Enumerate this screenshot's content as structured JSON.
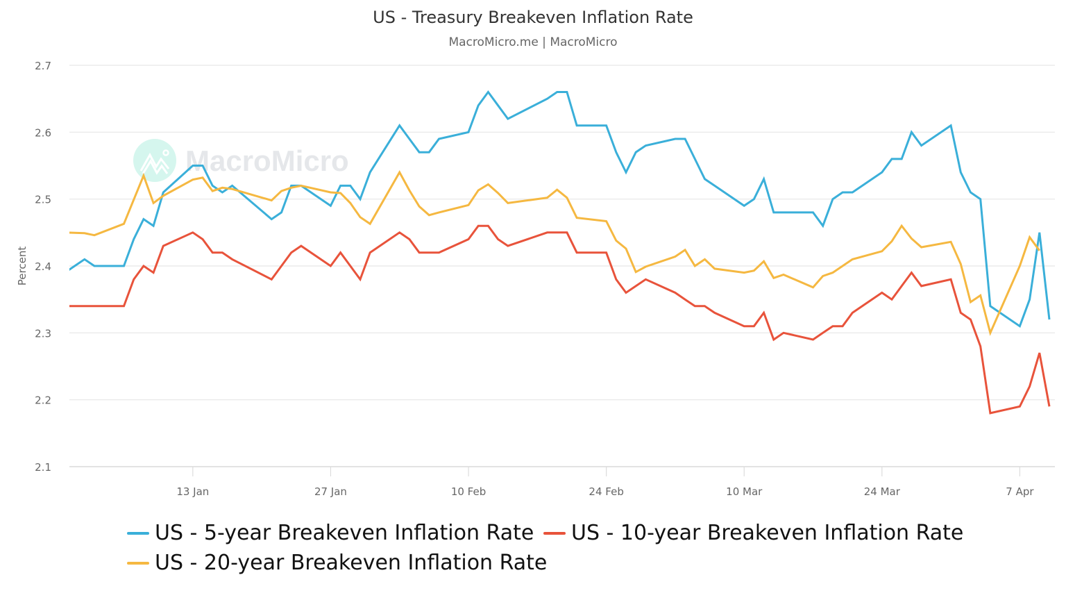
{
  "title": "US - Treasury Breakeven Inflation Rate",
  "subtitle": "MacroMicro.me | MacroMicro",
  "watermark": "MacroMicro",
  "chart_data": {
    "type": "line",
    "title": "US - Treasury Breakeven Inflation Rate",
    "xlabel": "",
    "ylabel": "Percent",
    "ylim": [
      2.1,
      2.7
    ],
    "xlim": [
      "2024-12-31",
      "2025-04-10"
    ],
    "yticks": [
      "2.1",
      "2.2",
      "2.3",
      "2.4",
      "2.5",
      "2.6",
      "2.7"
    ],
    "xticks": [
      {
        "date": "2025-01-13",
        "label": "13 Jan"
      },
      {
        "date": "2025-01-27",
        "label": "27 Jan"
      },
      {
        "date": "2025-02-10",
        "label": "10 Feb"
      },
      {
        "date": "2025-02-24",
        "label": "24 Feb"
      },
      {
        "date": "2025-03-10",
        "label": "10 Mar"
      },
      {
        "date": "2025-03-24",
        "label": "24 Mar"
      },
      {
        "date": "2025-04-07",
        "label": "7 Apr"
      }
    ],
    "grid": true,
    "legend_position": "bottom",
    "series": [
      {
        "name": "US - 5-year Breakeven Inflation Rate",
        "color": "#3aafd9",
        "points": [
          [
            "2024-12-31",
            2.39
          ],
          [
            "2025-01-02",
            2.41
          ],
          [
            "2025-01-03",
            2.4
          ],
          [
            "2025-01-06",
            2.4
          ],
          [
            "2025-01-07",
            2.44
          ],
          [
            "2025-01-08",
            2.47
          ],
          [
            "2025-01-09",
            2.46
          ],
          [
            "2025-01-10",
            2.51
          ],
          [
            "2025-01-13",
            2.55
          ],
          [
            "2025-01-14",
            2.55
          ],
          [
            "2025-01-15",
            2.52
          ],
          [
            "2025-01-16",
            2.51
          ],
          [
            "2025-01-17",
            2.52
          ],
          [
            "2025-01-21",
            2.47
          ],
          [
            "2025-01-22",
            2.48
          ],
          [
            "2025-01-23",
            2.52
          ],
          [
            "2025-01-24",
            2.52
          ],
          [
            "2025-01-27",
            2.49
          ],
          [
            "2025-01-28",
            2.52
          ],
          [
            "2025-01-29",
            2.52
          ],
          [
            "2025-01-30",
            2.5
          ],
          [
            "2025-01-31",
            2.54
          ],
          [
            "2025-02-03",
            2.61
          ],
          [
            "2025-02-04",
            2.59
          ],
          [
            "2025-02-05",
            2.57
          ],
          [
            "2025-02-06",
            2.57
          ],
          [
            "2025-02-07",
            2.59
          ],
          [
            "2025-02-10",
            2.6
          ],
          [
            "2025-02-11",
            2.64
          ],
          [
            "2025-02-12",
            2.66
          ],
          [
            "2025-02-13",
            2.64
          ],
          [
            "2025-02-14",
            2.62
          ],
          [
            "2025-02-18",
            2.65
          ],
          [
            "2025-02-19",
            2.66
          ],
          [
            "2025-02-20",
            2.66
          ],
          [
            "2025-02-21",
            2.61
          ],
          [
            "2025-02-24",
            2.61
          ],
          [
            "2025-02-25",
            2.57
          ],
          [
            "2025-02-26",
            2.54
          ],
          [
            "2025-02-27",
            2.57
          ],
          [
            "2025-02-28",
            2.58
          ],
          [
            "2025-03-03",
            2.59
          ],
          [
            "2025-03-04",
            2.59
          ],
          [
            "2025-03-05",
            2.56
          ],
          [
            "2025-03-06",
            2.53
          ],
          [
            "2025-03-07",
            2.52
          ],
          [
            "2025-03-10",
            2.49
          ],
          [
            "2025-03-11",
            2.5
          ],
          [
            "2025-03-12",
            2.53
          ],
          [
            "2025-03-13",
            2.48
          ],
          [
            "2025-03-14",
            2.48
          ],
          [
            "2025-03-17",
            2.48
          ],
          [
            "2025-03-18",
            2.46
          ],
          [
            "2025-03-19",
            2.5
          ],
          [
            "2025-03-20",
            2.51
          ],
          [
            "2025-03-21",
            2.51
          ],
          [
            "2025-03-24",
            2.54
          ],
          [
            "2025-03-25",
            2.56
          ],
          [
            "2025-03-26",
            2.56
          ],
          [
            "2025-03-27",
            2.6
          ],
          [
            "2025-03-28",
            2.58
          ],
          [
            "2025-03-31",
            2.61
          ],
          [
            "2025-04-01",
            2.54
          ],
          [
            "2025-04-02",
            2.51
          ],
          [
            "2025-04-03",
            2.5
          ],
          [
            "2025-04-04",
            2.34
          ],
          [
            "2025-04-07",
            2.31
          ],
          [
            "2025-04-08",
            2.35
          ],
          [
            "2025-04-09",
            2.45
          ],
          [
            "2025-04-10",
            2.32
          ]
        ]
      },
      {
        "name": "US - 10-year Breakeven Inflation Rate",
        "color": "#e8533b",
        "points": [
          [
            "2024-12-31",
            2.34
          ],
          [
            "2025-01-02",
            2.34
          ],
          [
            "2025-01-03",
            2.34
          ],
          [
            "2025-01-06",
            2.34
          ],
          [
            "2025-01-07",
            2.38
          ],
          [
            "2025-01-08",
            2.4
          ],
          [
            "2025-01-09",
            2.39
          ],
          [
            "2025-01-10",
            2.43
          ],
          [
            "2025-01-13",
            2.45
          ],
          [
            "2025-01-14",
            2.44
          ],
          [
            "2025-01-15",
            2.42
          ],
          [
            "2025-01-16",
            2.42
          ],
          [
            "2025-01-17",
            2.41
          ],
          [
            "2025-01-21",
            2.38
          ],
          [
            "2025-01-22",
            2.4
          ],
          [
            "2025-01-23",
            2.42
          ],
          [
            "2025-01-24",
            2.43
          ],
          [
            "2025-01-27",
            2.4
          ],
          [
            "2025-01-28",
            2.42
          ],
          [
            "2025-01-29",
            2.4
          ],
          [
            "2025-01-30",
            2.38
          ],
          [
            "2025-01-31",
            2.42
          ],
          [
            "2025-02-03",
            2.45
          ],
          [
            "2025-02-04",
            2.44
          ],
          [
            "2025-02-05",
            2.42
          ],
          [
            "2025-02-06",
            2.42
          ],
          [
            "2025-02-07",
            2.42
          ],
          [
            "2025-02-10",
            2.44
          ],
          [
            "2025-02-11",
            2.46
          ],
          [
            "2025-02-12",
            2.46
          ],
          [
            "2025-02-13",
            2.44
          ],
          [
            "2025-02-14",
            2.43
          ],
          [
            "2025-02-18",
            2.45
          ],
          [
            "2025-02-19",
            2.45
          ],
          [
            "2025-02-20",
            2.45
          ],
          [
            "2025-02-21",
            2.42
          ],
          [
            "2025-02-24",
            2.42
          ],
          [
            "2025-02-25",
            2.38
          ],
          [
            "2025-02-26",
            2.36
          ],
          [
            "2025-02-27",
            2.37
          ],
          [
            "2025-02-28",
            2.38
          ],
          [
            "2025-03-03",
            2.36
          ],
          [
            "2025-03-04",
            2.35
          ],
          [
            "2025-03-05",
            2.34
          ],
          [
            "2025-03-06",
            2.34
          ],
          [
            "2025-03-07",
            2.33
          ],
          [
            "2025-03-10",
            2.31
          ],
          [
            "2025-03-11",
            2.31
          ],
          [
            "2025-03-12",
            2.33
          ],
          [
            "2025-03-13",
            2.29
          ],
          [
            "2025-03-14",
            2.3
          ],
          [
            "2025-03-17",
            2.29
          ],
          [
            "2025-03-18",
            2.3
          ],
          [
            "2025-03-19",
            2.31
          ],
          [
            "2025-03-20",
            2.31
          ],
          [
            "2025-03-21",
            2.33
          ],
          [
            "2025-03-24",
            2.36
          ],
          [
            "2025-03-25",
            2.35
          ],
          [
            "2025-03-26",
            2.37
          ],
          [
            "2025-03-27",
            2.39
          ],
          [
            "2025-03-28",
            2.37
          ],
          [
            "2025-03-31",
            2.38
          ],
          [
            "2025-04-01",
            2.33
          ],
          [
            "2025-04-02",
            2.32
          ],
          [
            "2025-04-03",
            2.28
          ],
          [
            "2025-04-04",
            2.18
          ],
          [
            "2025-04-07",
            2.19
          ],
          [
            "2025-04-08",
            2.22
          ],
          [
            "2025-04-09",
            2.27
          ],
          [
            "2025-04-10",
            2.19
          ]
        ]
      },
      {
        "name": "US - 20-year Breakeven Inflation Rate",
        "color": "#f5b841",
        "points": [
          [
            "2024-12-31",
            2.45
          ],
          [
            "2025-01-02",
            2.449
          ],
          [
            "2025-01-03",
            2.446
          ],
          [
            "2025-01-06",
            2.463
          ],
          [
            "2025-01-07",
            2.499
          ],
          [
            "2025-01-08",
            2.535
          ],
          [
            "2025-01-09",
            2.494
          ],
          [
            "2025-01-10",
            2.505
          ],
          [
            "2025-01-13",
            2.529
          ],
          [
            "2025-01-14",
            2.532
          ],
          [
            "2025-01-15",
            2.512
          ],
          [
            "2025-01-16",
            2.517
          ],
          [
            "2025-01-17",
            2.515
          ],
          [
            "2025-01-21",
            2.498
          ],
          [
            "2025-01-22",
            2.512
          ],
          [
            "2025-01-23",
            2.517
          ],
          [
            "2025-01-24",
            2.52
          ],
          [
            "2025-01-27",
            2.51
          ],
          [
            "2025-01-28",
            2.509
          ],
          [
            "2025-01-29",
            2.494
          ],
          [
            "2025-01-30",
            2.473
          ],
          [
            "2025-01-31",
            2.463
          ],
          [
            "2025-02-03",
            2.54
          ],
          [
            "2025-02-04",
            2.513
          ],
          [
            "2025-02-05",
            2.489
          ],
          [
            "2025-02-06",
            2.476
          ],
          [
            "2025-02-07",
            2.48
          ],
          [
            "2025-02-10",
            2.491
          ],
          [
            "2025-02-11",
            2.513
          ],
          [
            "2025-02-12",
            2.522
          ],
          [
            "2025-02-13",
            2.509
          ],
          [
            "2025-02-14",
            2.494
          ],
          [
            "2025-02-18",
            2.502
          ],
          [
            "2025-02-19",
            2.514
          ],
          [
            "2025-02-20",
            2.502
          ],
          [
            "2025-02-21",
            2.472
          ],
          [
            "2025-02-24",
            2.467
          ],
          [
            "2025-02-25",
            2.438
          ],
          [
            "2025-02-26",
            2.426
          ],
          [
            "2025-02-27",
            2.391
          ],
          [
            "2025-02-28",
            2.399
          ],
          [
            "2025-03-03",
            2.414
          ],
          [
            "2025-03-04",
            2.424
          ],
          [
            "2025-03-05",
            2.4
          ],
          [
            "2025-03-06",
            2.41
          ],
          [
            "2025-03-07",
            2.396
          ],
          [
            "2025-03-10",
            2.39
          ],
          [
            "2025-03-11",
            2.393
          ],
          [
            "2025-03-12",
            2.407
          ],
          [
            "2025-03-13",
            2.382
          ],
          [
            "2025-03-14",
            2.387
          ],
          [
            "2025-03-17",
            2.368
          ],
          [
            "2025-03-18",
            2.385
          ],
          [
            "2025-03-19",
            2.39
          ],
          [
            "2025-03-20",
            2.4
          ],
          [
            "2025-03-21",
            2.41
          ],
          [
            "2025-03-24",
            2.422
          ],
          [
            "2025-03-25",
            2.437
          ],
          [
            "2025-03-26",
            2.46
          ],
          [
            "2025-03-27",
            2.441
          ],
          [
            "2025-03-28",
            2.428
          ],
          [
            "2025-03-31",
            2.436
          ],
          [
            "2025-04-01",
            2.403
          ],
          [
            "2025-04-02",
            2.346
          ],
          [
            "2025-04-03",
            2.356
          ],
          [
            "2025-04-04",
            2.3
          ],
          [
            "2025-04-07",
            2.4
          ],
          [
            "2025-04-08",
            2.443
          ],
          [
            "2025-04-09",
            2.423
          ]
        ]
      }
    ]
  }
}
